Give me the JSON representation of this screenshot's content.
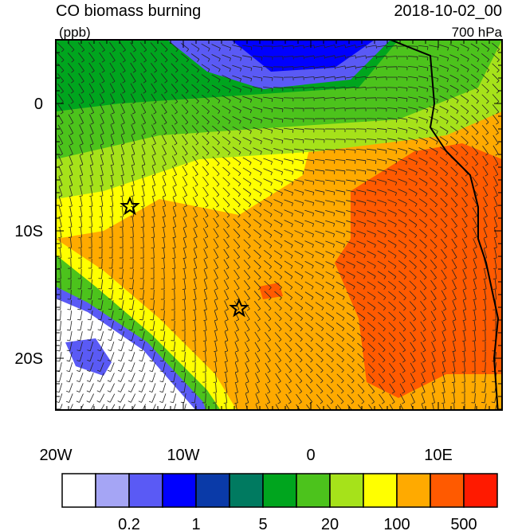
{
  "header": {
    "title": "CO biomass burning",
    "units": "(ppb)",
    "date": "2018-10-02_00",
    "level": "700 hPa"
  },
  "map": {
    "x_tick_labels": [
      "20W",
      "10W",
      "0",
      "10E"
    ],
    "y_tick_labels": [
      "0",
      "10S",
      "20S"
    ]
  },
  "colorbar": {
    "colors": [
      "#ffffff",
      "#a5a5f5",
      "#5a5af5",
      "#0000ff",
      "#0a3aa8",
      "#007a60",
      "#00a51e",
      "#4cc31c",
      "#a6e21a",
      "#ffff00",
      "#ffaa00",
      "#ff5a00",
      "#ff1a00"
    ],
    "labels": [
      "0.2",
      "1",
      "5",
      "20",
      "100",
      "500"
    ]
  }
}
